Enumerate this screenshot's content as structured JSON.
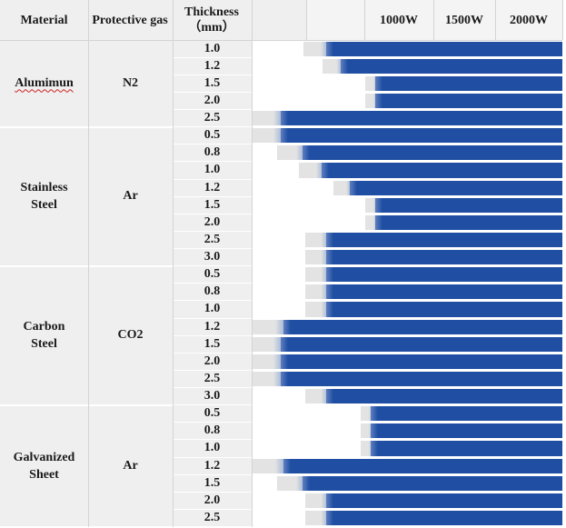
{
  "headers": {
    "material": "Material",
    "gas": "Protective gas",
    "thickness": "Thickness（mm）",
    "power_columns": [
      "1000W",
      "1500W",
      "2000W"
    ]
  },
  "colors": {
    "bar_blue": "#1f4ea3",
    "fade_gray": "#e3e3e3",
    "cell_gray": "#efefef",
    "grid": "#d4d4d4"
  },
  "chart_data": {
    "type": "bar",
    "orientation": "horizontal",
    "description_of_encoding": "Each bar starts at the minimum laser power that can cut the given thickness and extends to the right edge (2000W). A light gray lead-in precedes each blue bar.",
    "x_axis": {
      "ticks": [
        "1000W",
        "1500W",
        "2000W"
      ]
    },
    "groups": [
      {
        "material": "Alumimun",
        "gas": "N2",
        "rows": [
          {
            "thickness": "1.0",
            "fade_start": 0.395,
            "blue_start": 0.44
          },
          {
            "thickness": "1.2",
            "fade_start": 0.44,
            "blue_start": 0.475
          },
          {
            "thickness": "1.5",
            "fade_start": 0.54,
            "blue_start": 0.555
          },
          {
            "thickness": "2.0",
            "fade_start": 0.54,
            "blue_start": 0.555
          },
          {
            "thickness": "2.5",
            "fade_start": 0.275,
            "blue_start": 0.335
          }
        ]
      },
      {
        "material": "Stainless Steel",
        "gas": "Ar",
        "rows": [
          {
            "thickness": "0.5",
            "fade_start": 0.275,
            "blue_start": 0.335
          },
          {
            "thickness": "0.8",
            "fade_start": 0.335,
            "blue_start": 0.385
          },
          {
            "thickness": "1.0",
            "fade_start": 0.385,
            "blue_start": 0.43
          },
          {
            "thickness": "1.2",
            "fade_start": 0.465,
            "blue_start": 0.495
          },
          {
            "thickness": "1.5",
            "fade_start": 0.54,
            "blue_start": 0.555
          },
          {
            "thickness": "2.0",
            "fade_start": 0.54,
            "blue_start": 0.555
          },
          {
            "thickness": "2.5",
            "fade_start": 0.4,
            "blue_start": 0.44
          },
          {
            "thickness": "3.0",
            "fade_start": 0.4,
            "blue_start": 0.44
          }
        ]
      },
      {
        "material": "Carbon Steel",
        "gas": "CO2",
        "rows": [
          {
            "thickness": "0.5",
            "fade_start": 0.4,
            "blue_start": 0.44
          },
          {
            "thickness": "0.8",
            "fade_start": 0.4,
            "blue_start": 0.44
          },
          {
            "thickness": "1.0",
            "fade_start": 0.4,
            "blue_start": 0.44
          },
          {
            "thickness": "1.2",
            "fade_start": 0.275,
            "blue_start": 0.34
          },
          {
            "thickness": "1.5",
            "fade_start": 0.275,
            "blue_start": 0.335
          },
          {
            "thickness": "2.0",
            "fade_start": 0.275,
            "blue_start": 0.335
          },
          {
            "thickness": "2.5",
            "fade_start": 0.275,
            "blue_start": 0.335
          },
          {
            "thickness": "3.0",
            "fade_start": 0.4,
            "blue_start": 0.44
          }
        ]
      },
      {
        "material": "Galvanized Sheet",
        "gas": "Ar",
        "rows": [
          {
            "thickness": "0.5",
            "fade_start": 0.53,
            "blue_start": 0.545
          },
          {
            "thickness": "0.8",
            "fade_start": 0.53,
            "blue_start": 0.545
          },
          {
            "thickness": "1.0",
            "fade_start": 0.53,
            "blue_start": 0.545
          },
          {
            "thickness": "1.2",
            "fade_start": 0.275,
            "blue_start": 0.34
          },
          {
            "thickness": "1.5",
            "fade_start": 0.335,
            "blue_start": 0.385
          },
          {
            "thickness": "2.0",
            "fade_start": 0.4,
            "blue_start": 0.44
          },
          {
            "thickness": "2.5",
            "fade_start": 0.4,
            "blue_start": 0.44
          }
        ]
      }
    ]
  }
}
